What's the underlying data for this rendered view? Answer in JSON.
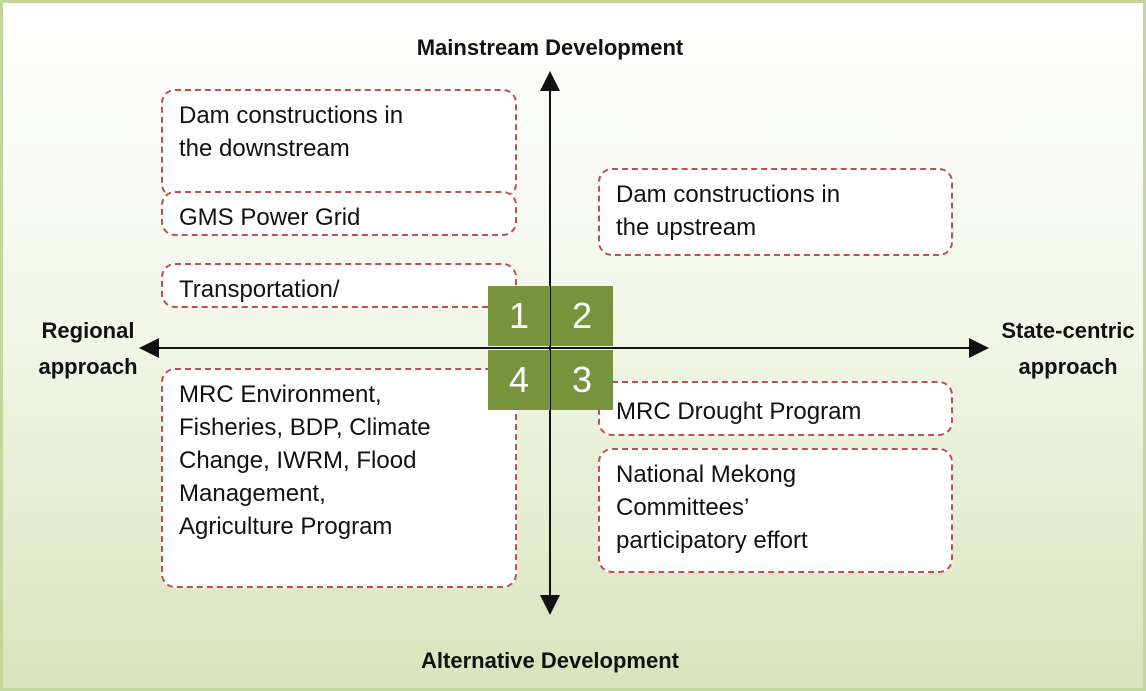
{
  "axes": {
    "top": "Mainstream Development",
    "bottom": "Alternative Development",
    "left": [
      "Regional",
      "approach"
    ],
    "right": [
      "State-centric",
      "approach"
    ]
  },
  "quadrants": [
    "1",
    "2",
    "4",
    "3"
  ],
  "boxes": [
    {
      "lines": [
        "Dam constructions in",
        "the downstream"
      ]
    },
    {
      "lines": [
        "GMS Power Grid"
      ]
    },
    {
      "lines": [
        "Transportation/"
      ]
    },
    {
      "lines": [
        "MRC Environment,",
        "Fisheries, BDP, Climate",
        "Change, IWRM, Flood",
        "Management,",
        "Agriculture Program"
      ]
    },
    {
      "lines": [
        "Dam constructions in",
        "the upstream"
      ]
    },
    {
      "lines": [
        "MRC Drought Program"
      ]
    },
    {
      "lines": [
        "National Mekong",
        "Committees’",
        "participatory effort"
      ]
    }
  ]
}
